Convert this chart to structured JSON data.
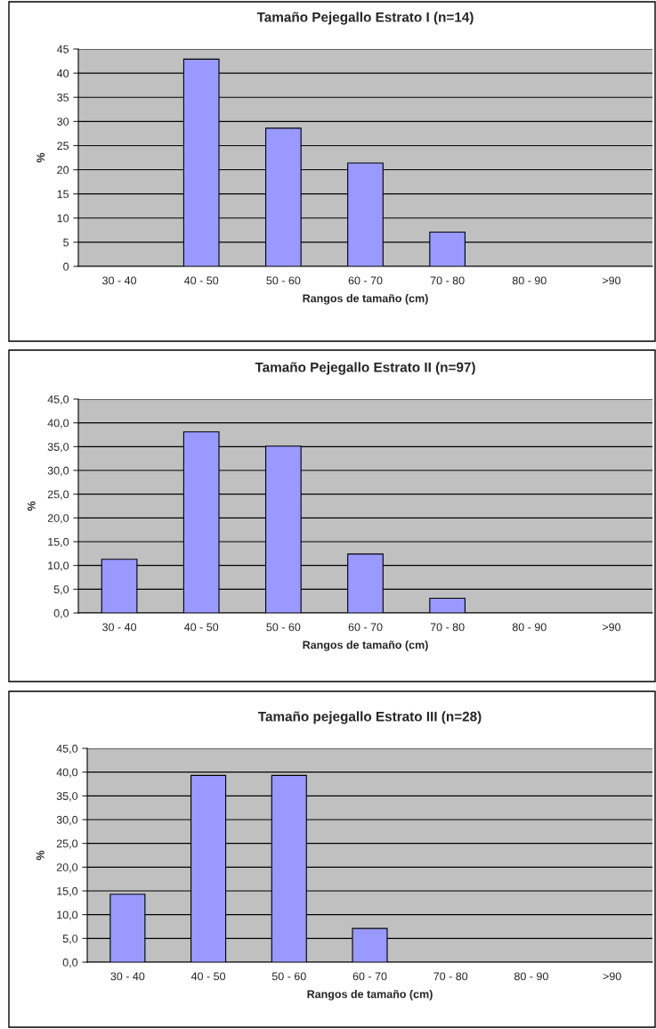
{
  "chart_data": [
    {
      "type": "bar",
      "title": "Tamaño Pejegallo Estrato I (n=14)",
      "xlabel": "Rangos de tamaño (cm)",
      "ylabel": "%",
      "categories": [
        "30 - 40",
        "40 - 50",
        "50 - 60",
        "60 - 70",
        "70 - 80",
        "80 - 90",
        ">90"
      ],
      "values": [
        0,
        42.9,
        28.6,
        21.4,
        7.1,
        0,
        0
      ],
      "color": "#9999ff",
      "ylim": [
        0,
        45
      ],
      "yticks": [
        0,
        5,
        10,
        15,
        20,
        25,
        30,
        35,
        40,
        45
      ],
      "grid": "y"
    },
    {
      "type": "bar",
      "title": "Tamaño Pejegallo Estrato II (n=97)",
      "xlabel": "Rangos de tamaño (cm)",
      "ylabel": "%",
      "categories": [
        "30 - 40",
        "40 - 50",
        "50 - 60",
        "60 - 70",
        "70 - 80",
        "80 - 90",
        ">90"
      ],
      "values": [
        11.3,
        38.1,
        35.1,
        12.4,
        3.1,
        0,
        0
      ],
      "color": "#9999ff",
      "ylim": [
        0,
        45
      ],
      "yticks": [
        {
          "value": 0,
          "label": "0,0"
        },
        {
          "value": 5,
          "label": "5,0"
        },
        {
          "value": 10,
          "label": "10,0"
        },
        {
          "value": 15,
          "label": "15,0"
        },
        {
          "value": 20,
          "label": "20,0"
        },
        {
          "value": 25,
          "label": "25,0"
        },
        {
          "value": 30,
          "label": "30,0"
        },
        {
          "value": 35,
          "label": "35,0"
        },
        {
          "value": 40,
          "label": "40,0"
        },
        {
          "value": 45,
          "label": "45,0"
        }
      ],
      "grid": "y"
    },
    {
      "type": "bar",
      "title": "Tamaño pejegallo Estrato III (n=28)",
      "xlabel": "Rangos de tamaño (cm)",
      "ylabel": "%",
      "categories": [
        "30 - 40",
        "40 - 50",
        "50 - 60",
        "60 - 70",
        "70 - 80",
        "80 - 90",
        ">90"
      ],
      "values": [
        14.3,
        39.3,
        39.3,
        7.1,
        0,
        0,
        0
      ],
      "color": "#9999ff",
      "ylim": [
        0,
        45
      ],
      "yticks": [
        {
          "value": 0,
          "label": "0,0"
        },
        {
          "value": 5,
          "label": "5,0"
        },
        {
          "value": 10,
          "label": "10,0"
        },
        {
          "value": 15,
          "label": "15,0"
        },
        {
          "value": 20,
          "label": "20,0"
        },
        {
          "value": 25,
          "label": "25,0"
        },
        {
          "value": 30,
          "label": "30,0"
        },
        {
          "value": 35,
          "label": "35,0"
        },
        {
          "value": 40,
          "label": "40,0"
        },
        {
          "value": 45,
          "label": "45,0"
        }
      ],
      "grid": "y"
    }
  ]
}
